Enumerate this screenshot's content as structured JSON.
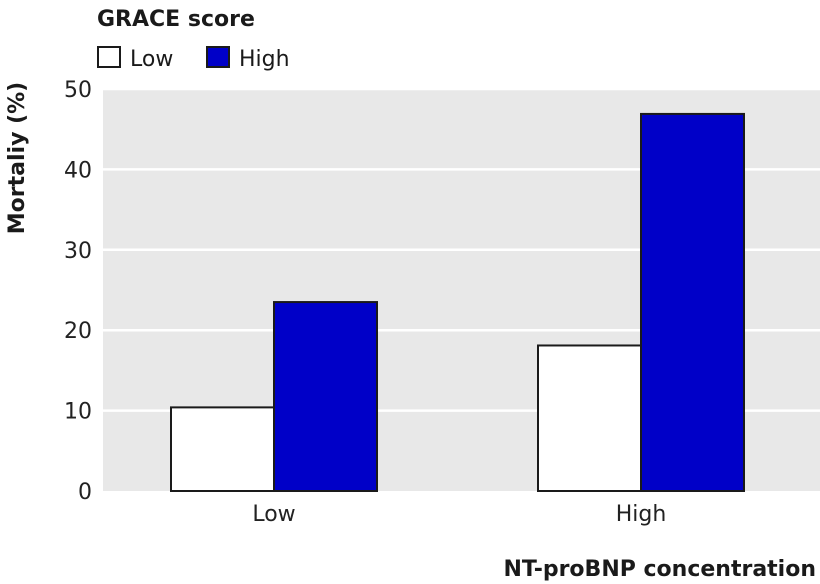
{
  "chart_data": {
    "type": "bar",
    "title": "",
    "xlabel": "NT-proBNP concentration",
    "ylabel": "Mortaliy (%)",
    "categories": [
      "Low",
      "High"
    ],
    "series": [
      {
        "name": "Low",
        "values": [
          10.4,
          18.1
        ],
        "color": "#ffffff"
      },
      {
        "name": "High",
        "values": [
          23.5,
          46.9
        ],
        "color": "#0000c8"
      }
    ],
    "ylim": [
      0,
      50
    ],
    "yticks": [
      "0",
      "10",
      "20",
      "30",
      "40",
      "50"
    ],
    "grid": true,
    "legend": {
      "title": "GRACE score",
      "placement": "top-left"
    }
  },
  "colors": {
    "plot_background": "#e8e8e8",
    "gridline": "#ffffff",
    "bar_outline": "#1a1a1a"
  }
}
